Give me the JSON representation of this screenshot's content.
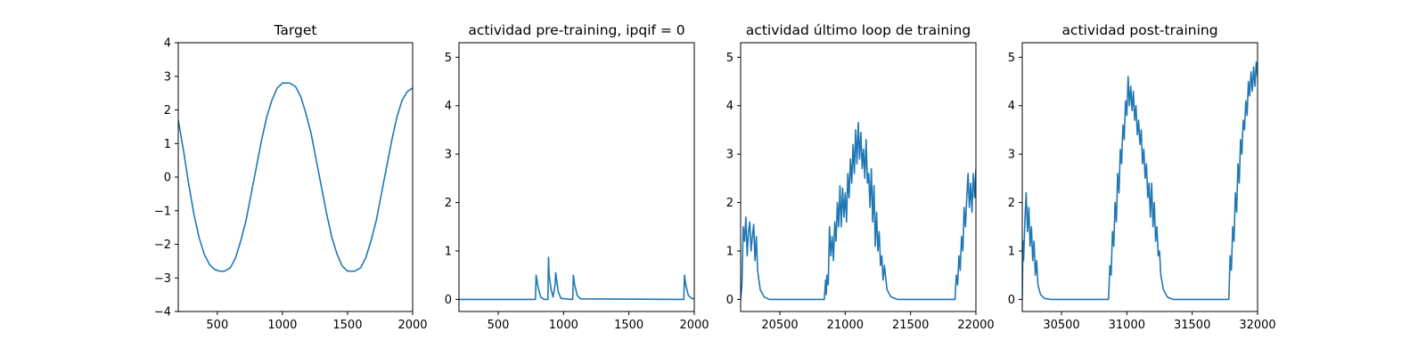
{
  "chart_data": [
    {
      "type": "line",
      "title": "Target",
      "xlim": [
        200,
        2000
      ],
      "ylim": [
        -4,
        4
      ],
      "xticks": [
        500,
        1000,
        1500,
        2000
      ],
      "yticks": [
        -4,
        -3,
        -2,
        -1,
        0,
        1,
        2,
        3,
        4
      ],
      "color": "#1f77b4",
      "series": [
        {
          "x": [
            200,
            240,
            280,
            320,
            360,
            400,
            440,
            480,
            520,
            555,
            600,
            640,
            680,
            720,
            760,
            800,
            840,
            880,
            920,
            960,
            1000,
            1055,
            1100,
            1140,
            1180,
            1220,
            1260,
            1300,
            1340,
            1380,
            1420,
            1460,
            1500,
            1555,
            1600,
            1640,
            1680,
            1720,
            1760,
            1800,
            1840,
            1880,
            1920,
            1960,
            2000
          ],
          "y": [
            1.7,
            0.8,
            -0.2,
            -1.1,
            -1.8,
            -2.3,
            -2.6,
            -2.75,
            -2.8,
            -2.8,
            -2.7,
            -2.4,
            -1.9,
            -1.3,
            -0.5,
            0.3,
            1.1,
            1.8,
            2.3,
            2.65,
            2.8,
            2.8,
            2.7,
            2.4,
            1.9,
            1.3,
            0.5,
            -0.3,
            -1.1,
            -1.8,
            -2.3,
            -2.65,
            -2.8,
            -2.8,
            -2.7,
            -2.4,
            -1.9,
            -1.3,
            -0.5,
            0.3,
            1.1,
            1.8,
            2.3,
            2.55,
            2.65
          ]
        }
      ]
    },
    {
      "type": "line",
      "title": "actividad pre-training, ipqif = 0",
      "xlim": [
        200,
        2000
      ],
      "ylim": [
        -0.25,
        5.3
      ],
      "xticks": [
        500,
        1000,
        1500,
        2000
      ],
      "yticks": [
        0,
        1,
        2,
        3,
        4,
        5
      ],
      "color": "#1f77b4",
      "series": [
        {
          "x": [
            200,
            785,
            790,
            805,
            825,
            850,
            880,
            885,
            890,
            905,
            920,
            935,
            940,
            960,
            980,
            1070,
            1075,
            1085,
            1105,
            1130,
            1900,
            1920,
            1925,
            1935,
            1955,
            1980,
            2000
          ],
          "y": [
            0,
            0,
            0.5,
            0.25,
            0.05,
            0,
            0,
            0.87,
            0.5,
            0.2,
            0.05,
            0.3,
            0.55,
            0.15,
            0.02,
            0,
            0.5,
            0.3,
            0.08,
            0.01,
            0,
            0,
            0.5,
            0.3,
            0.08,
            0.02,
            0.01
          ]
        }
      ]
    },
    {
      "type": "line",
      "title": "actividad último loop de training",
      "xlim": [
        20200,
        22000
      ],
      "ylim": [
        -0.25,
        5.3
      ],
      "xticks": [
        20500,
        21000,
        21500,
        22000
      ],
      "yticks": [
        0,
        1,
        2,
        3,
        4,
        5
      ],
      "color": "#1f77b4",
      "series": [
        {
          "x": [
            20200,
            20210,
            20215,
            20220,
            20230,
            20240,
            20250,
            20260,
            20270,
            20280,
            20290,
            20300,
            20310,
            20320,
            20330,
            20350,
            20380,
            20420,
            20840,
            20850,
            20855,
            20860,
            20870,
            20880,
            20890,
            20900,
            20910,
            20920,
            20930,
            20940,
            20950,
            20960,
            20970,
            20980,
            20990,
            21000,
            21010,
            21020,
            21030,
            21040,
            21050,
            21060,
            21070,
            21080,
            21090,
            21100,
            21110,
            21120,
            21130,
            21140,
            21150,
            21160,
            21170,
            21180,
            21190,
            21200,
            21210,
            21220,
            21230,
            21240,
            21250,
            21260,
            21270,
            21280,
            21290,
            21300,
            21320,
            21350,
            21400,
            21840,
            21850,
            21860,
            21870,
            21880,
            21890,
            21900,
            21910,
            21920,
            21930,
            21940,
            21950,
            21960,
            21970,
            21980,
            21990,
            22000
          ],
          "y": [
            0.0,
            0.3,
            0.9,
            1.5,
            1.2,
            1.7,
            0.9,
            1.4,
            1.6,
            1.0,
            1.3,
            1.55,
            0.8,
            1.3,
            0.6,
            0.2,
            0.05,
            0.0,
            0.0,
            0.4,
            0.1,
            0.5,
            0.3,
            1.5,
            0.9,
            1.3,
            0.8,
            1.6,
            1.2,
            2.0,
            1.5,
            2.35,
            1.5,
            2.3,
            1.7,
            2.2,
            1.6,
            2.6,
            2.1,
            2.9,
            2.4,
            3.2,
            2.6,
            3.5,
            2.8,
            3.65,
            2.9,
            3.45,
            2.7,
            3.1,
            2.5,
            3.3,
            2.4,
            2.6,
            1.9,
            2.7,
            1.6,
            2.35,
            1.1,
            1.8,
            1.0,
            1.4,
            0.7,
            0.9,
            0.4,
            0.7,
            0.2,
            0.05,
            0.0,
            0.0,
            0.5,
            0.3,
            0.9,
            0.6,
            1.3,
            1.0,
            1.9,
            1.5,
            2.1,
            2.6,
            1.9,
            2.4,
            1.8,
            2.6,
            2.1,
            2.7
          ]
        }
      ]
    },
    {
      "type": "line",
      "title": "actividad post-training",
      "xlim": [
        30200,
        32000
      ],
      "ylim": [
        -0.25,
        5.3
      ],
      "xticks": [
        30500,
        31000,
        31500,
        32000
      ],
      "yticks": [
        0,
        1,
        2,
        3,
        4,
        5
      ],
      "color": "#1f77b4",
      "series": [
        {
          "x": [
            30200,
            30205,
            30210,
            30220,
            30230,
            30240,
            30250,
            30260,
            30270,
            30280,
            30290,
            30300,
            30310,
            30320,
            30340,
            30370,
            30420,
            30860,
            30870,
            30880,
            30890,
            30900,
            30910,
            30920,
            30930,
            30940,
            30950,
            30960,
            30970,
            30980,
            30990,
            31000,
            31010,
            31020,
            31030,
            31040,
            31050,
            31060,
            31070,
            31080,
            31090,
            31100,
            31110,
            31120,
            31130,
            31140,
            31150,
            31160,
            31170,
            31180,
            31190,
            31200,
            31210,
            31220,
            31230,
            31240,
            31250,
            31260,
            31280,
            31310,
            31350,
            31780,
            31790,
            31800,
            31810,
            31820,
            31830,
            31840,
            31850,
            31860,
            31870,
            31880,
            31890,
            31900,
            31910,
            31920,
            31930,
            31940,
            31950,
            31960,
            31970,
            31980,
            31990,
            32000
          ],
          "y": [
            0.0,
            1.2,
            0.8,
            1.6,
            2.2,
            1.4,
            1.9,
            1.1,
            1.5,
            0.8,
            1.2,
            0.5,
            0.8,
            0.3,
            0.1,
            0.02,
            0.0,
            0.0,
            0.7,
            0.5,
            1.4,
            1.1,
            2.0,
            1.6,
            2.6,
            2.2,
            3.1,
            2.8,
            3.6,
            3.3,
            4.1,
            3.8,
            4.6,
            4.0,
            4.4,
            3.9,
            4.3,
            3.7,
            4.0,
            3.4,
            3.7,
            3.2,
            3.5,
            2.8,
            3.1,
            2.5,
            2.8,
            2.1,
            2.4,
            1.7,
            2.4,
            1.5,
            2.0,
            1.2,
            1.5,
            0.9,
            1.0,
            0.5,
            0.2,
            0.05,
            0.0,
            0.0,
            0.9,
            0.6,
            1.5,
            1.2,
            2.2,
            1.8,
            2.8,
            2.4,
            3.3,
            3.0,
            3.7,
            3.5,
            4.1,
            3.8,
            4.5,
            4.2,
            4.7,
            4.3,
            4.8,
            4.4,
            4.9,
            4.6
          ]
        }
      ]
    }
  ]
}
